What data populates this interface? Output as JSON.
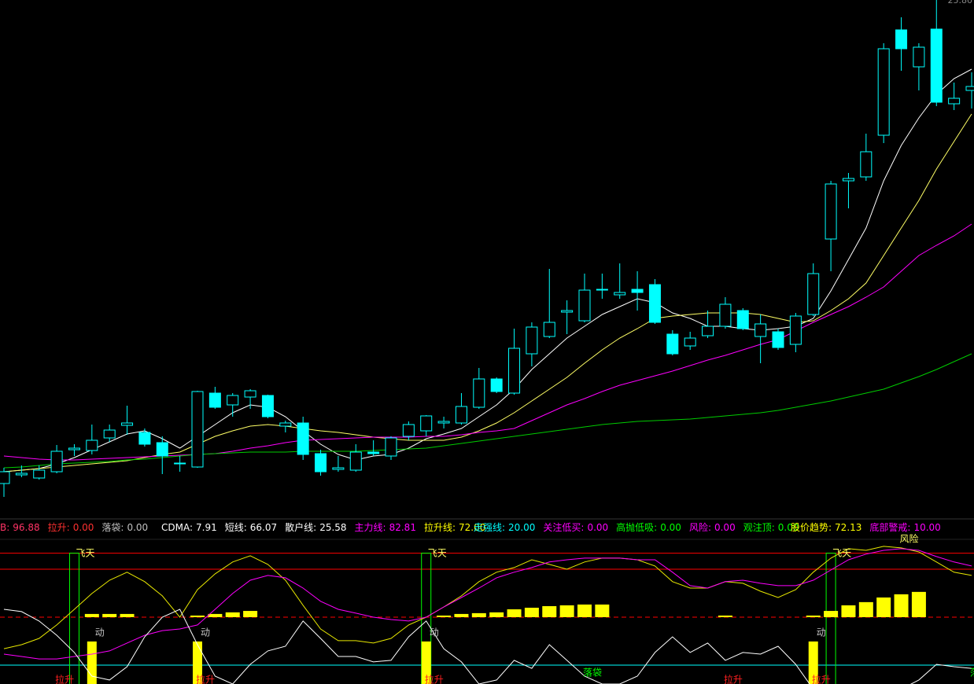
{
  "chart_data": [
    {
      "type": "candlestick",
      "categories": [
        null,
        null,
        null,
        null,
        null,
        null,
        null,
        null,
        null,
        null,
        null,
        null,
        null,
        null,
        null,
        null,
        null,
        null,
        null,
        null,
        null,
        null,
        null,
        null,
        null,
        null,
        null,
        null,
        null,
        null,
        null,
        null,
        null,
        null,
        null,
        null,
        null,
        null,
        null,
        null,
        null,
        null,
        null,
        null,
        null,
        null,
        null,
        null,
        null,
        null,
        null,
        null,
        null,
        null,
        null,
        null
      ],
      "open": [
        13.5,
        13.72,
        13.64,
        13.8,
        14.36,
        14.34,
        14.66,
        14.98,
        14.8,
        14.54,
        14.0,
        13.92,
        15.8,
        15.5,
        15.7,
        15.74,
        14.96,
        15.04,
        14.26,
        13.86,
        13.84,
        14.3,
        14.2,
        14.7,
        14.84,
        15.04,
        15.04,
        15.44,
        16.16,
        15.8,
        16.8,
        17.24,
        17.86,
        17.64,
        18.42,
        18.3,
        18.44,
        18.56,
        17.3,
        17.0,
        17.26,
        17.5,
        17.9,
        17.24,
        17.36,
        17.04,
        17.8,
        19.72,
        21.2,
        21.3,
        22.36,
        25.04,
        24.1,
        25.06,
        23.16,
        23.5
      ],
      "high": [
        13.9,
        13.96,
        13.96,
        14.48,
        14.5,
        15.0,
        15.0,
        15.48,
        14.9,
        14.7,
        14.2,
        15.86,
        15.96,
        15.8,
        15.9,
        15.76,
        15.1,
        15.2,
        14.36,
        14.2,
        14.5,
        14.6,
        14.7,
        15.08,
        15.24,
        15.2,
        15.8,
        16.44,
        16.2,
        17.44,
        17.6,
        18.96,
        18.16,
        18.84,
        18.84,
        19.1,
        18.9,
        18.7,
        17.4,
        17.36,
        17.9,
        18.24,
        17.96,
        17.8,
        17.44,
        17.84,
        19.1,
        21.2,
        21.4,
        22.4,
        24.7,
        25.36,
        24.7,
        25.8,
        23.7,
        23.96
      ],
      "low": [
        13.16,
        13.66,
        13.6,
        13.76,
        14.2,
        14.24,
        14.56,
        14.74,
        14.44,
        13.74,
        13.8,
        13.9,
        15.4,
        15.2,
        15.4,
        15.16,
        14.8,
        14.1,
        13.7,
        13.8,
        13.8,
        14.2,
        14.1,
        14.6,
        14.7,
        14.9,
        15.0,
        15.4,
        15.8,
        15.76,
        16.48,
        17.2,
        17.3,
        17.6,
        18.2,
        18.2,
        17.9,
        17.56,
        16.76,
        16.9,
        17.2,
        17.44,
        17.4,
        16.56,
        16.9,
        16.84,
        17.76,
        18.9,
        20.5,
        21.2,
        22.16,
        24.0,
        23.5,
        23.1,
        23.0,
        23.04
      ],
      "close": [
        13.8,
        13.76,
        13.84,
        14.32,
        14.4,
        14.6,
        14.86,
        15.04,
        14.5,
        14.2,
        14.02,
        15.84,
        15.44,
        15.74,
        15.86,
        15.2,
        15.04,
        14.24,
        13.8,
        13.9,
        14.3,
        14.26,
        14.66,
        15.0,
        15.22,
        15.08,
        15.46,
        16.16,
        15.84,
        16.94,
        17.48,
        17.6,
        17.9,
        18.42,
        18.44,
        18.36,
        18.36,
        17.6,
        16.8,
        17.2,
        17.5,
        18.06,
        17.44,
        17.56,
        16.96,
        17.76,
        18.84,
        21.12,
        21.26,
        21.94,
        24.56,
        24.56,
        24.6,
        23.2,
        23.3,
        23.6
      ],
      "color": "#00ffff",
      "ylim": [
        13.0,
        25.8
      ],
      "yticks": [
        {
          "value": 25.8,
          "label": "25.80"
        }
      ],
      "lines": [
        {
          "color": "#ffffff",
          "values": [
            13.8,
            13.84,
            13.88,
            14.0,
            14.16,
            14.36,
            14.56,
            14.76,
            14.84,
            14.64,
            14.4,
            14.7,
            15.0,
            15.3,
            15.5,
            15.44,
            15.2,
            14.84,
            14.5,
            14.24,
            14.1,
            14.2,
            14.24,
            14.4,
            14.64,
            14.76,
            14.9,
            15.2,
            15.5,
            15.9,
            16.4,
            16.8,
            17.2,
            17.5,
            17.8,
            18.0,
            18.2,
            18.1,
            17.84,
            17.7,
            17.5,
            17.5,
            17.44,
            17.4,
            17.44,
            17.5,
            17.7,
            18.4,
            19.2,
            20.0,
            21.2,
            22.1,
            22.8,
            23.4,
            23.8,
            24.04
          ]
        },
        {
          "color": "#ffff66",
          "values": [
            13.8,
            13.84,
            13.88,
            13.92,
            13.96,
            14.0,
            14.04,
            14.08,
            14.16,
            14.24,
            14.3,
            14.5,
            14.7,
            14.84,
            14.96,
            15.0,
            14.96,
            14.9,
            14.84,
            14.8,
            14.74,
            14.68,
            14.64,
            14.6,
            14.6,
            14.6,
            14.68,
            14.84,
            15.04,
            15.3,
            15.6,
            15.9,
            16.2,
            16.56,
            16.9,
            17.2,
            17.44,
            17.7,
            17.76,
            17.8,
            17.84,
            17.84,
            17.84,
            17.8,
            17.7,
            17.6,
            17.64,
            17.9,
            18.2,
            18.6,
            19.3,
            20.0,
            20.7,
            21.5,
            22.2,
            22.9
          ]
        },
        {
          "color": "#ff00ff",
          "values": [
            14.2,
            14.16,
            14.12,
            14.1,
            14.1,
            14.12,
            14.14,
            14.16,
            14.18,
            14.2,
            14.22,
            14.24,
            14.26,
            14.32,
            14.4,
            14.46,
            14.54,
            14.6,
            14.62,
            14.64,
            14.66,
            14.68,
            14.68,
            14.68,
            14.7,
            14.7,
            14.74,
            14.8,
            14.84,
            14.9,
            15.1,
            15.3,
            15.5,
            15.66,
            15.84,
            16.0,
            16.12,
            16.24,
            16.36,
            16.5,
            16.64,
            16.76,
            16.9,
            17.04,
            17.16,
            17.38,
            17.6,
            17.8,
            18.0,
            18.24,
            18.5,
            18.9,
            19.3,
            19.56,
            19.8,
            20.1
          ]
        },
        {
          "color": "#00cc00",
          "values": [
            13.9,
            13.92,
            13.96,
            14.0,
            14.02,
            14.04,
            14.06,
            14.1,
            14.12,
            14.16,
            14.2,
            14.24,
            14.26,
            14.28,
            14.3,
            14.3,
            14.3,
            14.32,
            14.32,
            14.32,
            14.32,
            14.34,
            14.36,
            14.38,
            14.4,
            14.46,
            14.52,
            14.58,
            14.64,
            14.7,
            14.76,
            14.82,
            14.88,
            14.94,
            15.0,
            15.04,
            15.08,
            15.1,
            15.12,
            15.14,
            15.18,
            15.22,
            15.26,
            15.3,
            15.36,
            15.44,
            15.52,
            15.6,
            15.7,
            15.8,
            15.9,
            16.06,
            16.22,
            16.4,
            16.6,
            16.8
          ]
        }
      ]
    },
    {
      "type": "indicator",
      "categories": [
        null,
        null,
        null,
        null,
        null,
        null,
        null,
        null,
        null,
        null,
        null,
        null,
        null,
        null,
        null,
        null,
        null,
        null,
        null,
        null,
        null,
        null,
        null,
        null,
        null,
        null,
        null,
        null,
        null,
        null,
        null,
        null,
        null,
        null,
        null,
        null,
        null,
        null,
        null,
        null,
        null,
        null,
        null,
        null,
        null,
        null,
        null,
        null,
        null,
        null,
        null,
        null,
        null,
        null,
        null,
        null
      ],
      "legend": [
        {
          "name": "B:",
          "value": 96.88,
          "color": "#ff3366"
        },
        {
          "name": "拉升:",
          "value": 0,
          "value_label": "0.00",
          "color": "#ff3030"
        },
        {
          "name": "落袋:",
          "value": 0,
          "value_label": "0.00",
          "color": "#c0c0c0"
        },
        {
          "name": "CDMA:",
          "value": 7.91,
          "color": "#ffffff"
        },
        {
          "name": "短线:",
          "value": 66.07,
          "color": "#ffffff"
        },
        {
          "name": "散户线:",
          "value": 25.58,
          "color": "#ffffff"
        },
        {
          "name": "主力线:",
          "value": 82.81,
          "color": "#ff00ff"
        },
        {
          "name": "拉升线:",
          "value": 72,
          "value_label": "72.00",
          "color": "#ffff00"
        },
        {
          "name": "走强线:",
          "value": 20,
          "value_label": "20.00",
          "color": "#00ffff"
        },
        {
          "name": "关注低买:",
          "value": 0,
          "value_label": "0.00",
          "color": "#ff00ff"
        },
        {
          "name": "高抛低吸:",
          "value": 0,
          "value_label": "0.00",
          "color": "#00ff00"
        },
        {
          "name": "风险:",
          "value": 0,
          "value_label": "0.00",
          "color": "#ff00ff"
        },
        {
          "name": "观注顶:",
          "value": 0,
          "value_label": "0.00",
          "color": "#00ff00"
        },
        {
          "name": "股价趋势:",
          "value": 72.13,
          "color": "#ffff00"
        },
        {
          "name": "底部警戒:",
          "value": 10,
          "value_label": "10.00",
          "color": "#ff00ff"
        }
      ],
      "ylim": [
        8.2,
        96.7
      ],
      "hlines": [
        {
          "value": 90,
          "color": "#ff0000",
          "style": "solid"
        },
        {
          "value": 80,
          "color": "#ff0000",
          "style": "solid"
        },
        {
          "value": 50,
          "color": "#ff0000",
          "style": "dashed"
        },
        {
          "value": 20,
          "color": "#00ffff",
          "style": "solid"
        }
      ],
      "bars": {
        "color": "#ffff00",
        "base": 50,
        "values": [
          null,
          null,
          null,
          null,
          null,
          52,
          52,
          52,
          null,
          null,
          null,
          51,
          52,
          53,
          53.9,
          null,
          null,
          null,
          null,
          null,
          null,
          null,
          null,
          null,
          null,
          51,
          52,
          52.5,
          53,
          54.9,
          55.9,
          56.9,
          57.4,
          57.9,
          57.9,
          null,
          null,
          null,
          null,
          null,
          null,
          51,
          null,
          null,
          null,
          null,
          51,
          53.9,
          57.4,
          59.4,
          62.3,
          64.3,
          65.8,
          null,
          null,
          null
        ]
      },
      "signal_bars": {
        "color": "#ffff00",
        "values": [
          null,
          null,
          null,
          null,
          null,
          34.8,
          null,
          null,
          null,
          null,
          null,
          34.8,
          null,
          null,
          null,
          null,
          null,
          null,
          null,
          null,
          null,
          null,
          null,
          null,
          34.8,
          null,
          null,
          null,
          null,
          null,
          null,
          null,
          null,
          null,
          null,
          null,
          null,
          null,
          null,
          null,
          null,
          null,
          null,
          null,
          null,
          null,
          34.8,
          null,
          null,
          null,
          null,
          null,
          null,
          null,
          null,
          null
        ]
      },
      "markers": {
        "color": "#00ff00",
        "indices": [
          4,
          24,
          47
        ]
      },
      "lines": [
        {
          "color": "#e8e800",
          "values": [
            30.3,
            32.8,
            36.7,
            45.1,
            54.9,
            64.8,
            73.1,
            78.1,
            72.2,
            63.3,
            50.0,
            67.2,
            77.1,
            84.5,
            88.4,
            83.0,
            73.1,
            57.4,
            42.6,
            35.3,
            35.3,
            33.8,
            36.7,
            45.1,
            50.0,
            56.4,
            63.3,
            72.2,
            78.1,
            81.0,
            85.9,
            83.0,
            80.0,
            84.5,
            86.9,
            86.9,
            85.9,
            82.0,
            72.2,
            68.2,
            68.2,
            72.2,
            71.2,
            66.2,
            62.3,
            67.2,
            78.1,
            86.9,
            92.8,
            91.8,
            94.3,
            93.3,
            90.8,
            84.5,
            78.1,
            76.1
          ]
        },
        {
          "color": "#ff00ff",
          "values": [
            26.9,
            25.4,
            23.9,
            23.9,
            25.4,
            26.9,
            28.9,
            33.8,
            38.7,
            41.6,
            42.6,
            45.1,
            54.9,
            64.8,
            73.1,
            76.1,
            74.6,
            68.2,
            59.9,
            54.9,
            52.5,
            50.0,
            48.5,
            47.6,
            50.0,
            56.4,
            62.3,
            68.2,
            74.6,
            78.1,
            81.0,
            84.5,
            85.9,
            86.9,
            86.9,
            86.9,
            85.9,
            85.9,
            78.1,
            69.7,
            68.2,
            72.2,
            73.1,
            71.2,
            69.7,
            69.7,
            73.1,
            79.5,
            85.9,
            89.4,
            91.8,
            92.8,
            91.8,
            87.9,
            84.5,
            82.0
          ]
        },
        {
          "color": "#ffffff",
          "values": [
            54.9,
            53.5,
            47.6,
            38.7,
            27.9,
            13.1,
            10.7,
            19.0,
            37.7,
            50.0,
            54.9,
            32.8,
            13.1,
            8.2,
            20.5,
            28.9,
            31.8,
            47.6,
            36.7,
            25.4,
            25.4,
            22.0,
            23.0,
            37.7,
            47.6,
            30.3,
            22.0,
            8.2,
            10.7,
            23.0,
            18.0,
            32.8,
            23.0,
            13.1,
            8.2,
            8.2,
            13.1,
            27.9,
            37.7,
            27.9,
            33.8,
            23.0,
            27.9,
            26.9,
            31.8,
            20.5,
            5,
            5,
            5,
            5,
            5,
            5,
            10.7,
            20.5,
            19.0,
            18.0
          ]
        }
      ],
      "annotations": [
        {
          "text": "飞天",
          "index": 4,
          "row": "upper",
          "color": "#ffff66"
        },
        {
          "text": "飞天",
          "index": 24,
          "row": "upper",
          "color": "#ffff66"
        },
        {
          "text": "飞天",
          "index": 47,
          "row": "upper",
          "color": "#ffff66"
        },
        {
          "text": "风险",
          "index": 51,
          "row": "edge",
          "color": "#ffff66"
        },
        {
          "text": "动",
          "index": 5,
          "row": "middle",
          "color": "#c0c0c0"
        },
        {
          "text": "动",
          "index": 11,
          "row": "middle",
          "color": "#c0c0c0"
        },
        {
          "text": "动",
          "index": 24,
          "row": "middle",
          "color": "#c0c0c0"
        },
        {
          "text": "动",
          "index": 46,
          "row": "middle",
          "color": "#c0c0c0"
        },
        {
          "text": "拉升",
          "index": 3,
          "row": "lower",
          "color": "#ff2020"
        },
        {
          "text": "拉升",
          "index": 11,
          "row": "lower",
          "color": "#ff2020"
        },
        {
          "text": "拉升",
          "index": 24,
          "row": "lower",
          "color": "#ff2020"
        },
        {
          "text": "拉升",
          "index": 41,
          "row": "lower",
          "color": "#ff2020"
        },
        {
          "text": "拉升",
          "index": 46,
          "row": "lower",
          "color": "#ff2020"
        },
        {
          "text": "落袋",
          "index": 33,
          "row": "low",
          "color": "#00ff00"
        },
        {
          "text": "落袋",
          "index": 55,
          "row": "low",
          "color": "#00ff00"
        }
      ]
    }
  ]
}
